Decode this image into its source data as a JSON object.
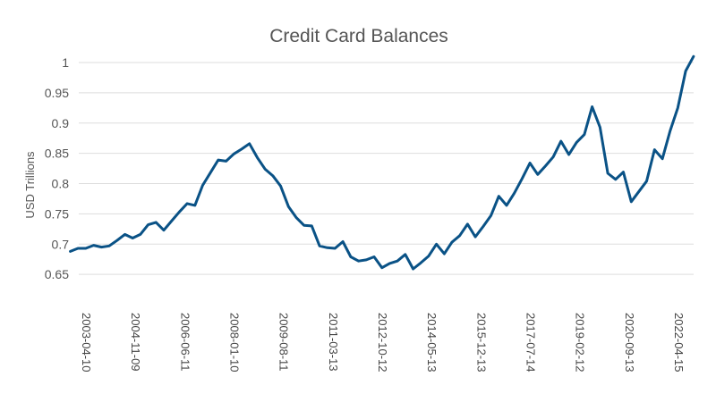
{
  "chart_data": {
    "type": "line",
    "title": "Credit Card Balances",
    "xlabel": "",
    "ylabel": "USD Trillions",
    "ylim": [
      0.6,
      1.0
    ],
    "yticks": [
      0.65,
      0.7,
      0.75,
      0.8,
      0.85,
      0.9,
      0.95,
      1
    ],
    "ytick_labels": [
      "0.65",
      "0.7",
      "0.75",
      "0.8",
      "0.85",
      "0.9",
      "0.95",
      "1"
    ],
    "xticks": [
      "2003-04-10",
      "2004-11-09",
      "2006-06-11",
      "2008-01-10",
      "2009-08-11",
      "2011-03-13",
      "2012-10-12",
      "2014-05-13",
      "2015-12-13",
      "2017-07-14",
      "2019-02-12",
      "2020-09-13",
      "2022-04-15"
    ],
    "grid": true,
    "legend": "none",
    "series_color": "#0a5286",
    "series": [
      {
        "x": [
          "2003-01-01",
          "2003-04-01",
          "2003-07-01",
          "2003-10-01",
          "2004-01-01",
          "2004-04-01",
          "2004-07-01",
          "2004-10-01",
          "2005-01-01",
          "2005-04-01",
          "2005-07-01",
          "2005-10-01",
          "2006-01-01",
          "2006-04-01",
          "2006-07-01",
          "2006-10-01",
          "2007-01-01",
          "2007-04-01",
          "2007-07-01",
          "2007-10-01",
          "2008-01-01",
          "2008-04-01",
          "2008-07-01",
          "2008-10-01",
          "2009-01-01",
          "2009-04-01",
          "2009-07-01",
          "2009-10-01",
          "2010-01-01",
          "2010-04-01",
          "2010-07-01",
          "2010-10-01",
          "2011-01-01",
          "2011-04-01",
          "2011-07-01",
          "2011-10-01",
          "2012-01-01",
          "2012-04-01",
          "2012-07-01",
          "2012-10-01",
          "2013-01-01",
          "2013-04-01",
          "2013-07-01",
          "2013-10-01",
          "2014-01-01",
          "2014-04-01",
          "2014-07-01",
          "2014-10-01",
          "2015-01-01",
          "2015-04-01",
          "2015-07-01",
          "2015-10-01",
          "2016-01-01",
          "2016-04-01",
          "2016-07-01",
          "2016-10-01",
          "2017-01-01",
          "2017-04-01",
          "2017-07-01",
          "2017-10-01",
          "2018-01-01",
          "2018-04-01",
          "2018-07-01",
          "2018-10-01",
          "2019-01-01",
          "2019-04-01",
          "2019-07-01",
          "2019-10-01",
          "2020-01-01",
          "2020-04-01",
          "2020-07-01",
          "2020-10-01",
          "2021-01-01",
          "2021-04-01",
          "2021-07-01",
          "2021-10-01",
          "2022-01-01",
          "2022-04-01",
          "2022-07-01",
          "2022-10-01",
          "2023-01-01"
        ],
        "values": [
          0.688,
          0.693,
          0.693,
          0.698,
          0.695,
          0.697,
          0.706,
          0.716,
          0.71,
          0.716,
          0.732,
          0.736,
          0.723,
          0.738,
          0.753,
          0.767,
          0.764,
          0.797,
          0.818,
          0.839,
          0.837,
          0.849,
          0.857,
          0.866,
          0.843,
          0.824,
          0.813,
          0.796,
          0.762,
          0.744,
          0.731,
          0.73,
          0.697,
          0.694,
          0.693,
          0.704,
          0.679,
          0.672,
          0.674,
          0.679,
          0.661,
          0.668,
          0.672,
          0.683,
          0.659,
          0.669,
          0.68,
          0.7,
          0.684,
          0.703,
          0.714,
          0.733,
          0.712,
          0.729,
          0.747,
          0.779,
          0.764,
          0.784,
          0.808,
          0.834,
          0.815,
          0.829,
          0.844,
          0.87,
          0.848,
          0.868,
          0.881,
          0.927,
          0.893,
          0.817,
          0.807,
          0.819,
          0.77,
          0.787,
          0.804,
          0.856,
          0.841,
          0.887,
          0.925,
          0.986,
          1.01
        ]
      }
    ]
  }
}
